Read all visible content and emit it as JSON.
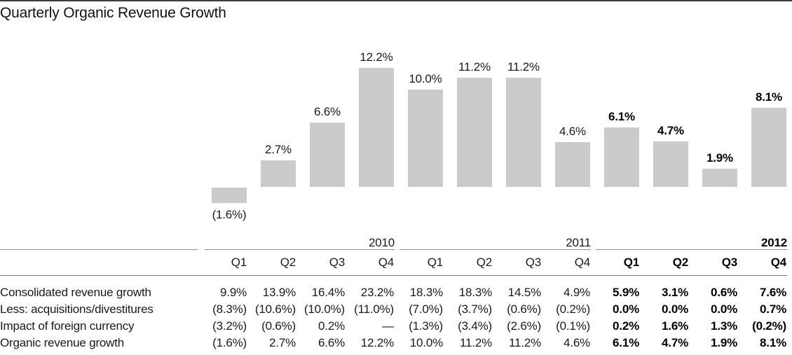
{
  "title": "Quarterly Organic Revenue Growth",
  "colors": {
    "bar": "#cbcbcb",
    "top_rule": "#3d3d3d",
    "table_rule": "#8e8e8e",
    "text": "#1a1a1a"
  },
  "chart_data": {
    "type": "bar",
    "title": "Quarterly Organic Revenue Growth",
    "categories": [
      "2010 Q1",
      "2010 Q2",
      "2010 Q3",
      "2010 Q4",
      "2011 Q1",
      "2011 Q2",
      "2011 Q3",
      "2011 Q4",
      "2012 Q1",
      "2012 Q2",
      "2012 Q3",
      "2012 Q4"
    ],
    "values": [
      -1.6,
      2.7,
      6.6,
      12.2,
      10.0,
      11.2,
      11.2,
      4.6,
      6.1,
      4.7,
      1.9,
      8.1
    ],
    "data_labels": [
      "(1.6%)",
      "2.7%",
      "6.6%",
      "12.2%",
      "10.0%",
      "11.2%",
      "11.2%",
      "4.6%",
      "6.1%",
      "4.7%",
      "1.9%",
      "8.1%"
    ],
    "bold_start_index": 8,
    "unit": "%",
    "ylim": [
      -2,
      13
    ],
    "grid": false,
    "legend": false,
    "axes_shown": false
  },
  "table": {
    "year_groups": [
      {
        "label": "2010",
        "cols": 4,
        "bold": false
      },
      {
        "label": "2011",
        "cols": 4,
        "bold": false
      },
      {
        "label": "2012",
        "cols": 4,
        "bold": true
      }
    ],
    "quarter_headers": [
      "Q1",
      "Q2",
      "Q3",
      "Q4",
      "Q1",
      "Q2",
      "Q3",
      "Q4",
      "Q1",
      "Q2",
      "Q3",
      "Q4"
    ],
    "bold_col_start": 8,
    "rows": [
      {
        "label": "Consolidated revenue growth",
        "values": [
          "9.9%",
          "13.9%",
          "16.4%",
          "23.2%",
          "18.3%",
          "18.3%",
          "14.5%",
          "4.9%",
          "5.9%",
          "3.1%",
          "0.6%",
          "7.6%"
        ]
      },
      {
        "label": "Less: acquisitions/divestitures",
        "values": [
          "(8.3%)",
          "(10.6%)",
          "(10.0%)",
          "(11.0%)",
          "(7.0%)",
          "(3.7%)",
          "(0.6%)",
          "(0.2%)",
          "0.0%",
          "0.0%",
          "0.0%",
          "0.7%"
        ]
      },
      {
        "label": "Impact of foreign currency",
        "values": [
          "(3.2%)",
          "(0.6%)",
          "0.2%",
          "—",
          "(1.3%)",
          "(3.4%)",
          "(2.6%)",
          "(0.1%)",
          "0.2%",
          "1.6%",
          "1.3%",
          "(0.2%)"
        ]
      },
      {
        "label": "Organic revenue growth",
        "values": [
          "(1.6%)",
          "2.7%",
          "6.6%",
          "12.2%",
          "10.0%",
          "11.2%",
          "11.2%",
          "4.6%",
          "6.1%",
          "4.7%",
          "1.9%",
          "8.1%"
        ]
      }
    ]
  }
}
